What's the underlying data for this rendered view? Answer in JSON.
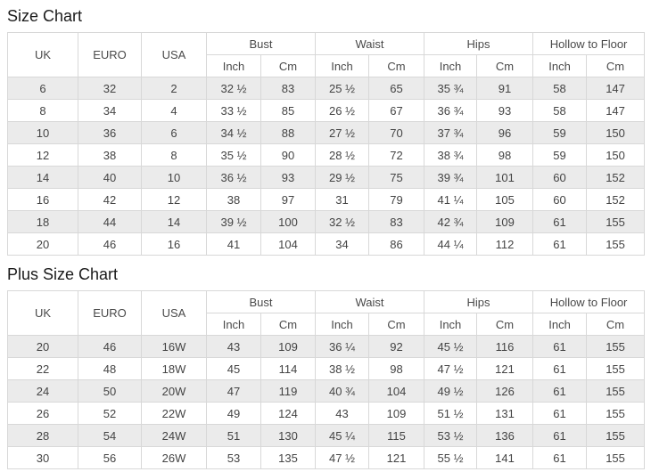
{
  "colors": {
    "stripe": "#ebebeb",
    "border": "#d8d8d8",
    "header_text": "#4a4a4a",
    "cell_text": "#444444",
    "title_text": "#1a1a1a",
    "background": "#ffffff"
  },
  "columns": {
    "uk": "UK",
    "euro": "EURO",
    "usa": "USA",
    "bust": "Bust",
    "waist": "Waist",
    "hips": "Hips",
    "hollow": "Hollow to Floor"
  },
  "labels": {
    "inch": "Inch",
    "cm": "Cm"
  },
  "sections": [
    {
      "title": "Size Chart",
      "rows": [
        [
          "6",
          "32",
          "2",
          "32 ½",
          "83",
          "25 ½",
          "65",
          "35 ¾",
          "91",
          "58",
          "147"
        ],
        [
          "8",
          "34",
          "4",
          "33 ½",
          "85",
          "26 ½",
          "67",
          "36 ¾",
          "93",
          "58",
          "147"
        ],
        [
          "10",
          "36",
          "6",
          "34 ½",
          "88",
          "27 ½",
          "70",
          "37 ¾",
          "96",
          "59",
          "150"
        ],
        [
          "12",
          "38",
          "8",
          "35 ½",
          "90",
          "28 ½",
          "72",
          "38 ¾",
          "98",
          "59",
          "150"
        ],
        [
          "14",
          "40",
          "10",
          "36 ½",
          "93",
          "29 ½",
          "75",
          "39 ¾",
          "101",
          "60",
          "152"
        ],
        [
          "16",
          "42",
          "12",
          "38",
          "97",
          "31",
          "79",
          "41 ¼",
          "105",
          "60",
          "152"
        ],
        [
          "18",
          "44",
          "14",
          "39 ½",
          "100",
          "32 ½",
          "83",
          "42 ¾",
          "109",
          "61",
          "155"
        ],
        [
          "20",
          "46",
          "16",
          "41",
          "104",
          "34",
          "86",
          "44 ¼",
          "112",
          "61",
          "155"
        ]
      ]
    },
    {
      "title": "Plus Size Chart",
      "rows": [
        [
          "20",
          "46",
          "16W",
          "43",
          "109",
          "36 ¼",
          "92",
          "45 ½",
          "116",
          "61",
          "155"
        ],
        [
          "22",
          "48",
          "18W",
          "45",
          "114",
          "38 ½",
          "98",
          "47 ½",
          "121",
          "61",
          "155"
        ],
        [
          "24",
          "50",
          "20W",
          "47",
          "119",
          "40 ¾",
          "104",
          "49 ½",
          "126",
          "61",
          "155"
        ],
        [
          "26",
          "52",
          "22W",
          "49",
          "124",
          "43",
          "109",
          "51 ½",
          "131",
          "61",
          "155"
        ],
        [
          "28",
          "54",
          "24W",
          "51",
          "130",
          "45 ¼",
          "115",
          "53 ½",
          "136",
          "61",
          "155"
        ],
        [
          "30",
          "56",
          "26W",
          "53",
          "135",
          "47 ½",
          "121",
          "55 ½",
          "141",
          "61",
          "155"
        ]
      ]
    }
  ]
}
